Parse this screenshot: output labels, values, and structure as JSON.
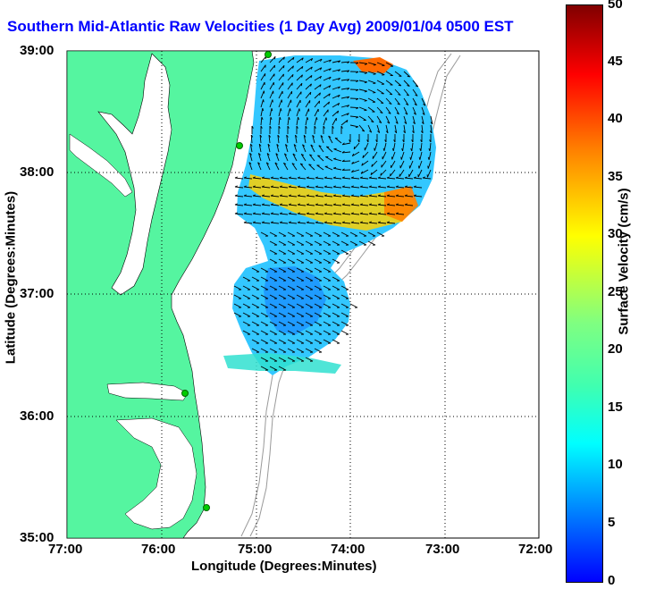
{
  "title": "Southern Mid-Atlantic Raw Velocities (1 Day Avg) 2009/01/04 0500 EST",
  "map": {
    "x_axis_label": "Longitude (Degrees:Minutes)",
    "y_axis_label": "Latitude (Degrees:Minutes)",
    "x_ticks": [
      "77:00",
      "76:00",
      "75:00",
      "74:00",
      "73:00",
      "72:00"
    ],
    "y_ticks": [
      "39:00",
      "38:00",
      "37:00",
      "36:00",
      "35:00"
    ],
    "land_color": "#55f5a0",
    "water_color": "#ffffff",
    "bathymetry_color": "#999999",
    "station_color": "#00cc00"
  },
  "colorbar": {
    "label": "Surface Velocity (cm/s)",
    "ticks": [
      "50",
      "45",
      "40",
      "35",
      "30",
      "25",
      "20",
      "15",
      "10",
      "5",
      "0"
    ]
  }
}
